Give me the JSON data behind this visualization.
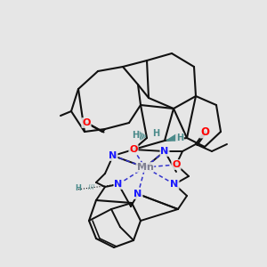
{
  "bg_color": "#e6e6e6",
  "fig_size": [
    3.0,
    3.0
  ],
  "dpi": 100,
  "atom_colors": {
    "N": "#1a1aff",
    "O": "#ff0000",
    "Mn": "#808090",
    "C": "#000000",
    "H": "#4a8a8a"
  },
  "bond_color": "#111111",
  "dashed_bond_color": "#3333cc",
  "wedge_color": "#4a8a8a",
  "wedge_dark": "#2a5a5a"
}
